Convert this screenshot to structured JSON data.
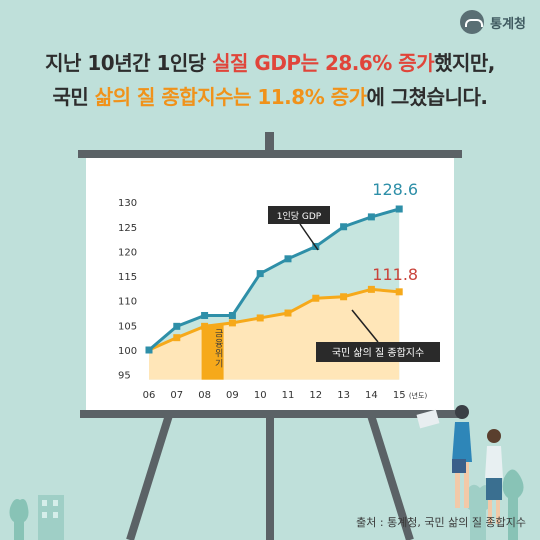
{
  "brand": {
    "name": "통계청",
    "logo_icon": "statistics-korea-logo-icon"
  },
  "headline": {
    "line1": {
      "pre": "지난 10년간 1인당 ",
      "hl": "실질 GDP는 28.6% 증가",
      "post": "했지만,"
    },
    "line2": {
      "pre": "국민 ",
      "hl": "삶의 질 종합지수는 11.8% 증가",
      "post": "에 그쳤습니다."
    }
  },
  "source": "출처 : 통계청, 국민 삶의 질 종합지수",
  "colors": {
    "gdp": "#2e8fa8",
    "qol": "#f6a91a",
    "crisis": "#f6a91a",
    "bg": "#bfe0da",
    "headline_red": "#e0453a",
    "headline_orange": "#f0921a",
    "value_red": "#c9433b"
  },
  "chart_data": {
    "type": "line",
    "categories": [
      "06",
      "07",
      "08",
      "09",
      "10",
      "11",
      "12",
      "13",
      "14",
      "15"
    ],
    "x_unit": "(년도)",
    "ylim": [
      95,
      130
    ],
    "yticks": [
      95,
      100,
      105,
      110,
      115,
      120,
      125,
      130
    ],
    "series": [
      {
        "name": "1인당 GDP",
        "values": [
          100,
          104.8,
          107,
          107,
          115.5,
          118.5,
          121,
          125,
          127,
          128.6
        ],
        "end_label": "128.6"
      },
      {
        "name": "국민 삶의 질 종합지수",
        "values": [
          100,
          102.5,
          104.8,
          105.5,
          106.5,
          107.5,
          110.5,
          110.8,
          112.3,
          111.8
        ],
        "end_label": "111.8"
      }
    ],
    "annotation": {
      "label": "금융위기",
      "x_from": "08",
      "x_to": "09"
    },
    "legend": "callouts"
  }
}
